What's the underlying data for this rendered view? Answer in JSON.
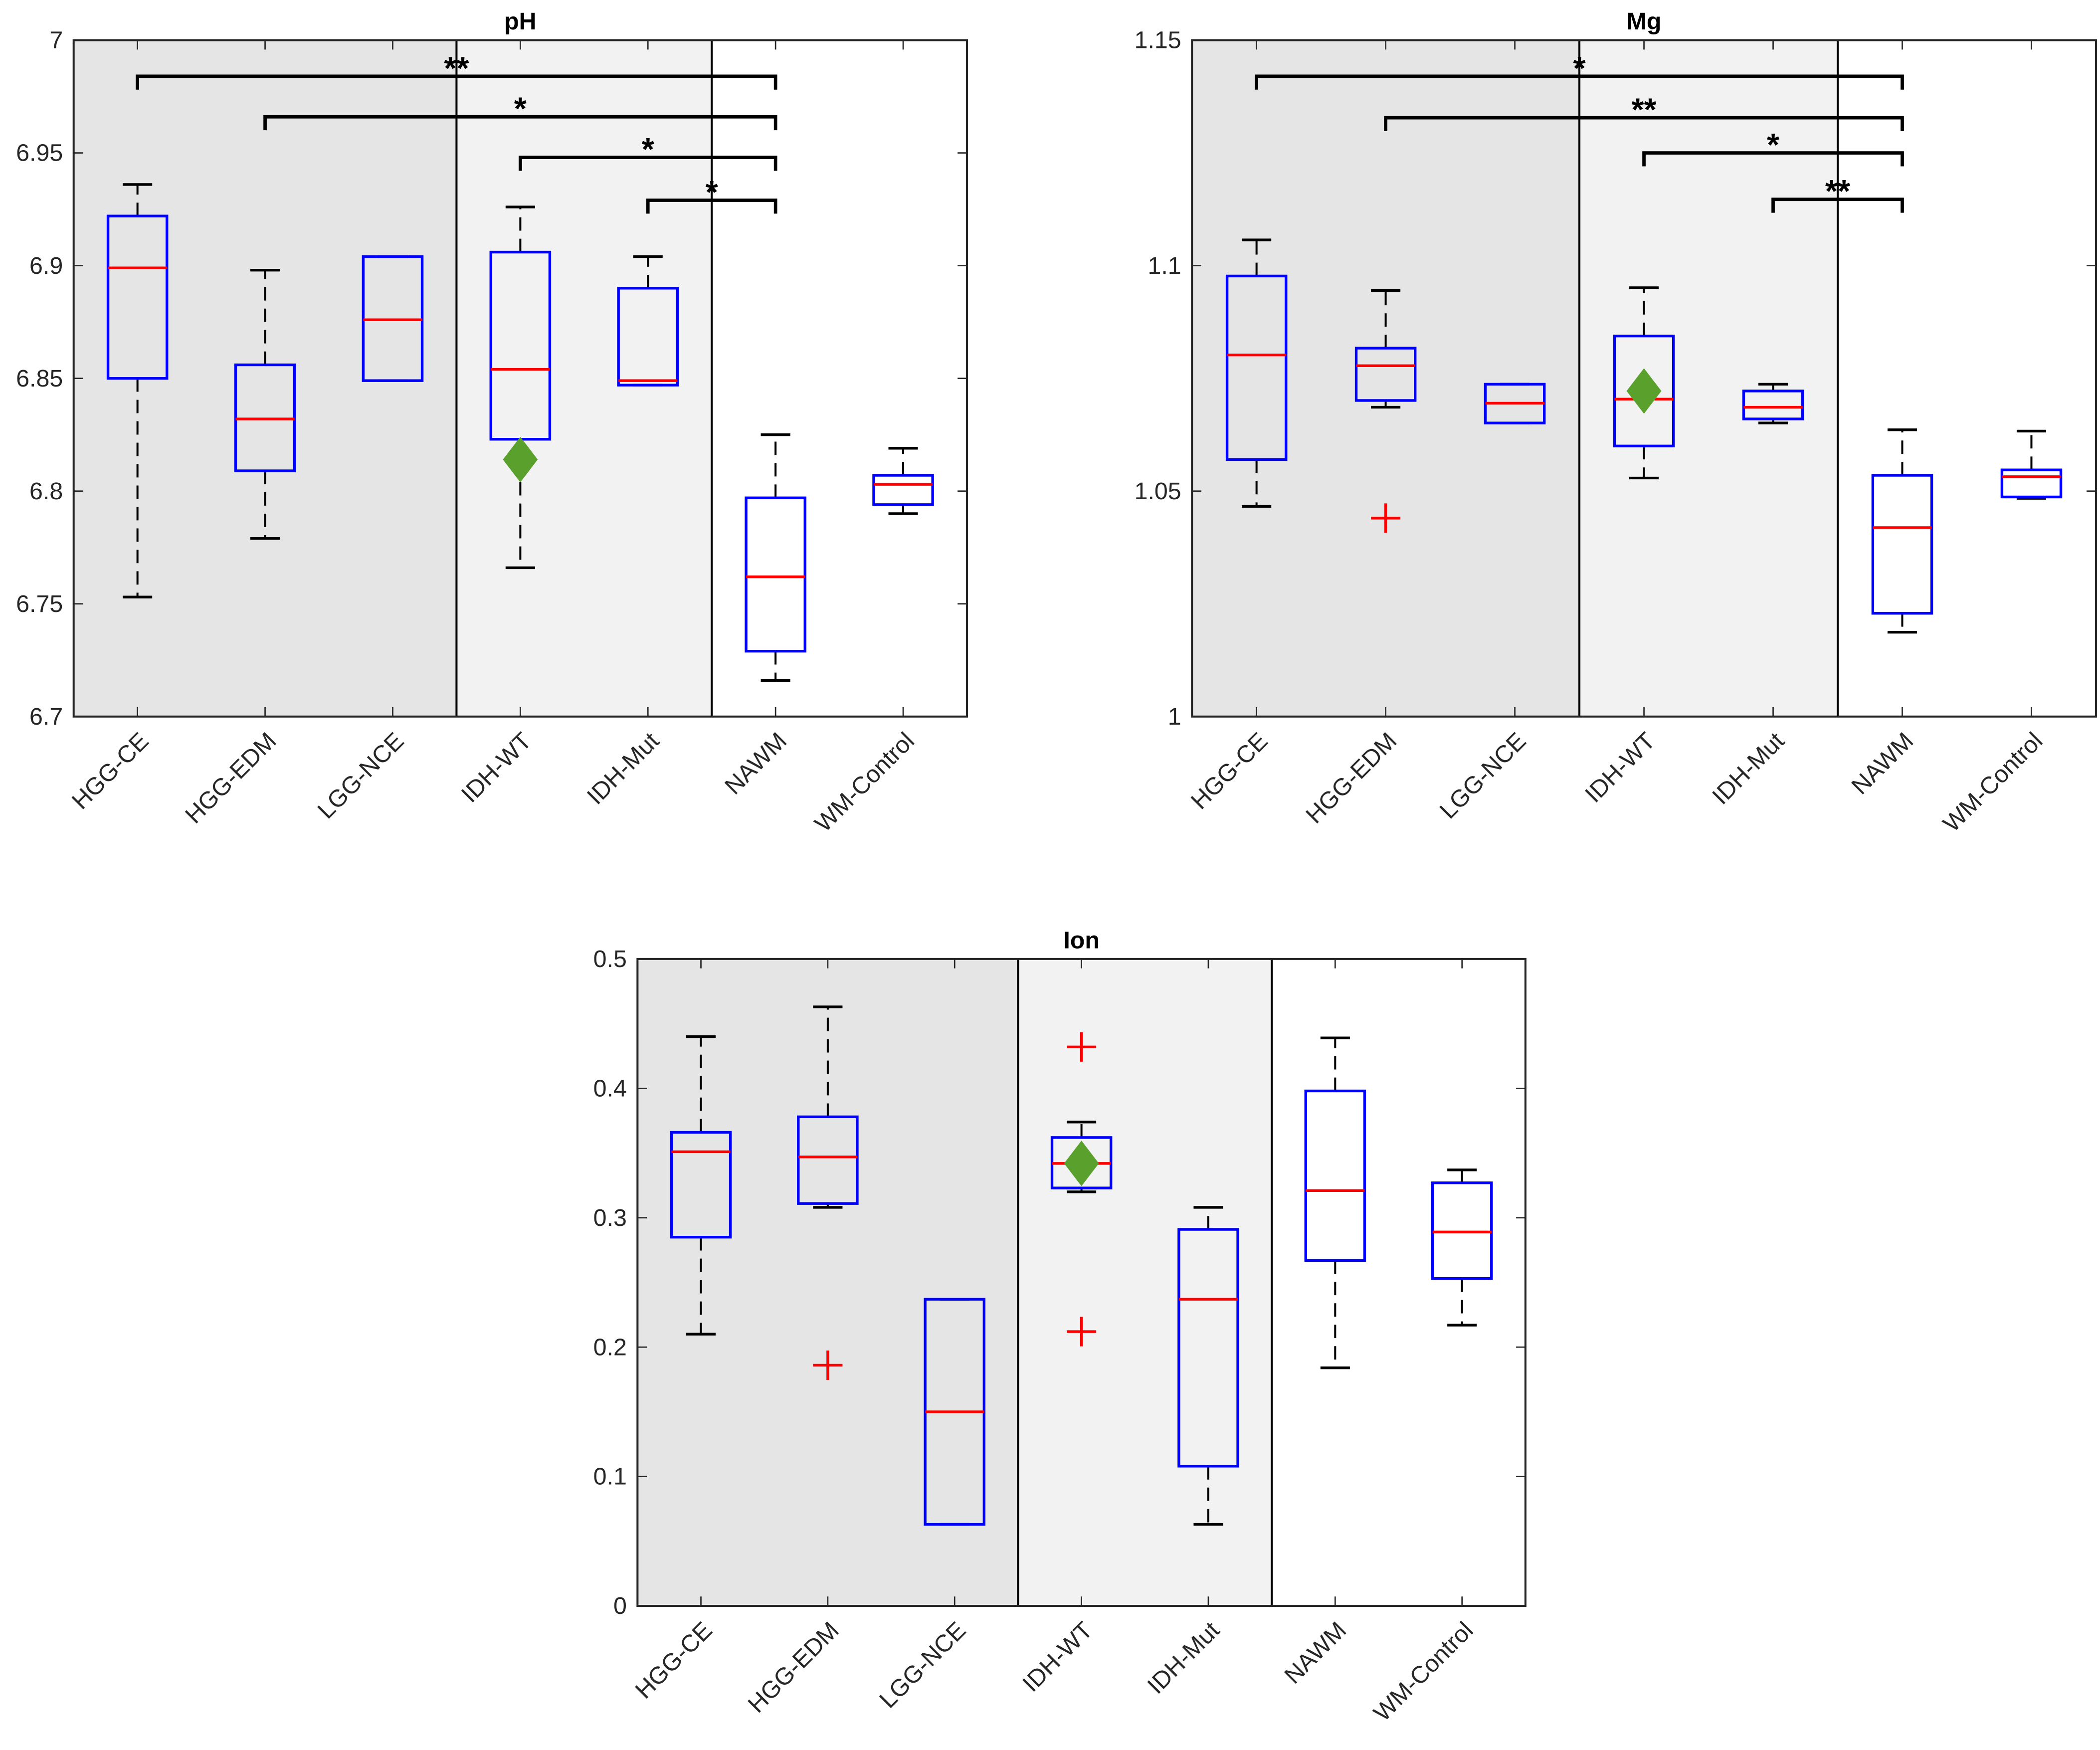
{
  "chart_data": [
    {
      "type": "box",
      "title": "pH",
      "categories": [
        "HGG-CE",
        "HGG-EDM",
        "LGG-NCE",
        "IDH-WT",
        "IDH-Mut",
        "NAWM",
        "WM-Control"
      ],
      "boxes": [
        {
          "min": 6.753,
          "q1": 6.85,
          "median": 6.899,
          "q3": 6.922,
          "max": 6.936,
          "outliers": []
        },
        {
          "min": 6.779,
          "q1": 6.809,
          "median": 6.832,
          "q3": 6.856,
          "max": 6.898,
          "outliers": []
        },
        {
          "min": 6.849,
          "q1": 6.849,
          "median": 6.876,
          "q3": 6.904,
          "max": 6.904,
          "outliers": []
        },
        {
          "min": 6.766,
          "q1": 6.823,
          "median": 6.854,
          "q3": 6.906,
          "max": 6.926,
          "outliers": []
        },
        {
          "min": 6.847,
          "q1": 6.847,
          "median": 6.849,
          "q3": 6.89,
          "max": 6.904,
          "outliers": []
        },
        {
          "min": 6.716,
          "q1": 6.729,
          "median": 6.762,
          "q3": 6.797,
          "max": 6.825,
          "outliers": []
        },
        {
          "min": 6.79,
          "q1": 6.794,
          "median": 6.803,
          "q3": 6.807,
          "max": 6.819,
          "outliers": []
        }
      ],
      "highlight": {
        "category": "IDH-WT",
        "value": 6.814,
        "color": "#5aa02c"
      },
      "brackets": [
        {
          "from": "HGG-CE",
          "to": "NAWM",
          "y": 6.984,
          "label": "**"
        },
        {
          "from": "HGG-EDM",
          "to": "NAWM",
          "y": 6.966,
          "label": "*"
        },
        {
          "from": "IDH-WT",
          "to": "NAWM",
          "y": 6.948,
          "label": "*"
        },
        {
          "from": "IDH-Mut",
          "to": "NAWM",
          "y": 6.929,
          "label": "*"
        }
      ],
      "shading": [
        {
          "from": "HGG-CE",
          "to": "LGG-NCE",
          "color": "#e5e5e5"
        },
        {
          "from": "IDH-WT",
          "to": "IDH-Mut",
          "color": "#f2f2f2"
        },
        {
          "from": "NAWM",
          "to": "WM-Control",
          "color": "#ffffff"
        }
      ],
      "box_color": "#0000ff",
      "median_color": "#ff0000",
      "whisker_color": "#000000",
      "outlier_color": "#ff0000",
      "ylim": [
        6.7,
        7
      ],
      "yticks": [
        6.7,
        6.75,
        6.8,
        6.85,
        6.9,
        6.95,
        7
      ]
    },
    {
      "type": "box",
      "title": "Mg",
      "categories": [
        "HGG-CE",
        "HGG-EDM",
        "LGG-NCE",
        "IDH-WT",
        "IDH-Mut",
        "NAWM",
        "WM-Control"
      ],
      "boxes": [
        {
          "min": 1.0466,
          "q1": 1.057,
          "median": 1.0802,
          "q3": 1.0977,
          "max": 1.1057,
          "outliers": []
        },
        {
          "min": 1.0686,
          "q1": 1.0701,
          "median": 1.0778,
          "q3": 1.0817,
          "max": 1.0945,
          "outliers": [
            1.044
          ]
        },
        {
          "min": 1.0651,
          "q1": 1.0651,
          "median": 1.0695,
          "q3": 1.0737,
          "max": 1.0737,
          "outliers": []
        },
        {
          "min": 1.0529,
          "q1": 1.06,
          "median": 1.0704,
          "q3": 1.0844,
          "max": 1.0951,
          "outliers": []
        },
        {
          "min": 1.0651,
          "q1": 1.066,
          "median": 1.0686,
          "q3": 1.0722,
          "max": 1.0737,
          "outliers": []
        },
        {
          "min": 1.0187,
          "q1": 1.0229,
          "median": 1.0419,
          "q3": 1.0535,
          "max": 1.0636,
          "outliers": []
        },
        {
          "min": 1.0484,
          "q1": 1.0487,
          "median": 1.0532,
          "q3": 1.0547,
          "max": 1.0633,
          "outliers": []
        }
      ],
      "highlight": {
        "category": "IDH-WT",
        "value": 1.0722,
        "color": "#5aa02c"
      },
      "brackets": [
        {
          "from": "HGG-CE",
          "to": "NAWM",
          "y": 1.142,
          "label": "*"
        },
        {
          "from": "HGG-EDM",
          "to": "NAWM",
          "y": 1.1328,
          "label": "**"
        },
        {
          "from": "IDH-WT",
          "to": "NAWM",
          "y": 1.125,
          "label": "*"
        },
        {
          "from": "IDH-Mut",
          "to": "NAWM",
          "y": 1.1147,
          "label": "**"
        }
      ],
      "shading": [
        {
          "from": "HGG-CE",
          "to": "LGG-NCE",
          "color": "#e5e5e5"
        },
        {
          "from": "IDH-WT",
          "to": "IDH-Mut",
          "color": "#f2f2f2"
        },
        {
          "from": "NAWM",
          "to": "WM-Control",
          "color": "#ffffff"
        }
      ],
      "box_color": "#0000ff",
      "median_color": "#ff0000",
      "whisker_color": "#000000",
      "outlier_color": "#ff0000",
      "ylim": [
        1,
        1.15
      ],
      "yticks": [
        1,
        1.05,
        1.1,
        1.15
      ]
    },
    {
      "type": "box",
      "title": "Ion",
      "categories": [
        "HGG-CE",
        "HGG-EDM",
        "LGG-NCE",
        "IDH-WT",
        "IDH-Mut",
        "NAWM",
        "WM-Control"
      ],
      "boxes": [
        {
          "min": 0.21,
          "q1": 0.285,
          "median": 0.351,
          "q3": 0.366,
          "max": 0.44,
          "outliers": []
        },
        {
          "min": 0.308,
          "q1": 0.311,
          "median": 0.347,
          "q3": 0.378,
          "max": 0.463,
          "outliers": [
            0.186
          ]
        },
        {
          "min": 0.063,
          "q1": 0.063,
          "median": 0.15,
          "q3": 0.237,
          "max": 0.237,
          "outliers": []
        },
        {
          "min": 0.32,
          "q1": 0.323,
          "median": 0.342,
          "q3": 0.362,
          "max": 0.374,
          "outliers": [
            0.432,
            0.212
          ]
        },
        {
          "min": 0.063,
          "q1": 0.108,
          "median": 0.237,
          "q3": 0.291,
          "max": 0.308,
          "outliers": []
        },
        {
          "min": 0.184,
          "q1": 0.267,
          "median": 0.321,
          "q3": 0.398,
          "max": 0.439,
          "outliers": []
        },
        {
          "min": 0.217,
          "q1": 0.253,
          "median": 0.289,
          "q3": 0.327,
          "max": 0.337,
          "outliers": []
        }
      ],
      "highlight": {
        "category": "IDH-WT",
        "value": 0.342,
        "color": "#5aa02c"
      },
      "brackets": [],
      "shading": [
        {
          "from": "HGG-CE",
          "to": "LGG-NCE",
          "color": "#e5e5e5"
        },
        {
          "from": "IDH-WT",
          "to": "IDH-Mut",
          "color": "#f2f2f2"
        },
        {
          "from": "NAWM",
          "to": "WM-Control",
          "color": "#ffffff"
        }
      ],
      "box_color": "#0000ff",
      "median_color": "#ff0000",
      "whisker_color": "#000000",
      "outlier_color": "#ff0000",
      "ylim": [
        0,
        0.5
      ],
      "yticks": [
        0,
        0.1,
        0.2,
        0.3,
        0.4,
        0.5
      ]
    }
  ]
}
